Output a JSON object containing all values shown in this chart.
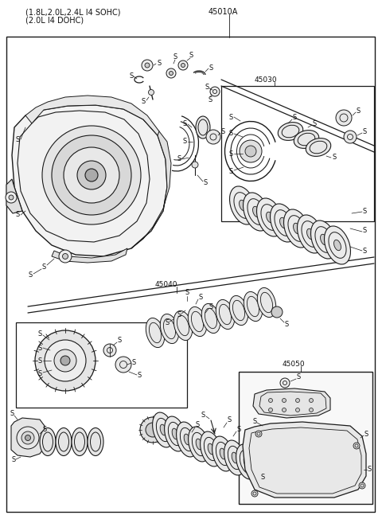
{
  "title_line1": "(1.8L,2.0L,2.4L I4 SOHC)",
  "title_line2": "(2.0L I4 DOHC)",
  "part_number_main": "45010A",
  "part_number_30": "45030",
  "part_number_40": "45040",
  "part_number_50": "45050",
  "bg_color": "#ffffff",
  "line_color": "#1a1a1a",
  "text_color": "#111111",
  "fig_width": 4.8,
  "fig_height": 6.57,
  "dpi": 100
}
